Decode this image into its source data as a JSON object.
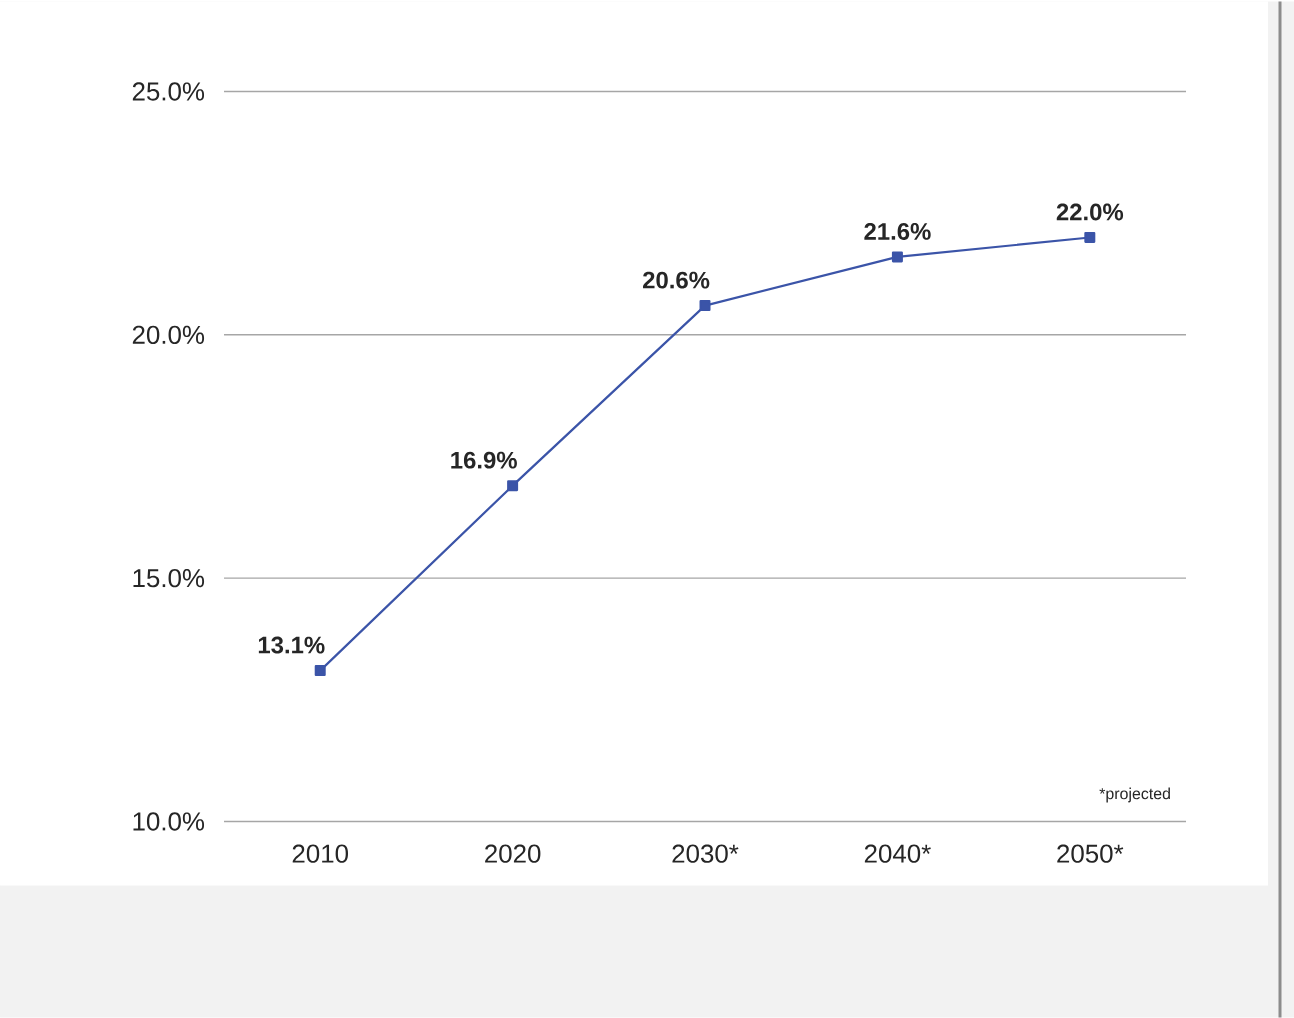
{
  "chart_data": {
    "type": "line",
    "categories": [
      "2010",
      "2020",
      "2030*",
      "2040*",
      "2050*"
    ],
    "values": [
      13.1,
      16.9,
      20.6,
      21.6,
      22.0
    ],
    "value_labels": [
      "13.1%",
      "16.9%",
      "20.6%",
      "21.6%",
      "22.0%"
    ],
    "color": "#3b54a8",
    "ylim": [
      10,
      25
    ],
    "yticks": [
      {
        "value": 10,
        "label": "10.0%"
      },
      {
        "value": 15,
        "label": "15.0%"
      },
      {
        "value": 20,
        "label": "20.0%"
      },
      {
        "value": 25,
        "label": "25.0%"
      }
    ],
    "grid": "y",
    "marker": "square",
    "line_style": "solid",
    "annotations": [
      "*projected"
    ]
  }
}
